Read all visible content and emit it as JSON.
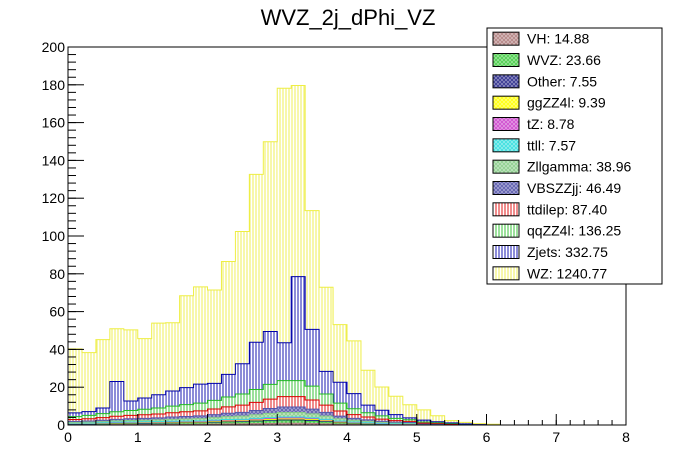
{
  "chart_data": {
    "type": "bar",
    "stacked": true,
    "title": "WVZ_2j_dPhi_VZ",
    "xlabel": "",
    "ylabel": "",
    "xlim": [
      0,
      8
    ],
    "ylim": [
      0,
      200
    ],
    "bin_width": 0.2,
    "x_tick_labels": [
      "0",
      "1",
      "2",
      "3",
      "4",
      "5",
      "6",
      "7",
      "8"
    ],
    "y_tick_labels": [
      "0",
      "20",
      "40",
      "60",
      "80",
      "100",
      "120",
      "140",
      "160",
      "180",
      "200"
    ],
    "legend_position": "top-right",
    "bin_edges_start": [
      0.0,
      0.2,
      0.4,
      0.6,
      0.8,
      1.0,
      1.2,
      1.4,
      1.6,
      1.8,
      2.0,
      2.2,
      2.4,
      2.6,
      2.8,
      3.0,
      3.2,
      3.4,
      3.6,
      3.8,
      4.0,
      4.2,
      4.4,
      4.6,
      4.8,
      5.0,
      5.2,
      5.4,
      5.6,
      5.8,
      6.0
    ],
    "series": [
      {
        "name": "VH: 14.88",
        "color": "#b07f7f",
        "pattern": "crosshatch",
        "values": [
          0.2,
          0.2,
          0.2,
          0.3,
          0.3,
          0.3,
          0.3,
          0.4,
          0.4,
          0.4,
          0.5,
          0.6,
          0.6,
          0.7,
          0.8,
          0.9,
          0.9,
          0.8,
          0.6,
          0.4,
          0.3,
          0.2,
          0.2,
          0.1,
          0.1,
          0.1,
          0.1,
          0,
          0,
          0,
          0
        ]
      },
      {
        "name": "WVZ: 23.66",
        "color": "#44cc44",
        "pattern": "crosshatch",
        "values": [
          0.3,
          0.3,
          0.4,
          0.5,
          0.5,
          0.5,
          0.6,
          0.6,
          0.7,
          0.7,
          0.8,
          0.9,
          1.0,
          1.1,
          1.3,
          1.4,
          1.4,
          1.2,
          1.0,
          0.7,
          0.5,
          0.4,
          0.3,
          0.2,
          0.2,
          0.1,
          0.1,
          0.1,
          0,
          0,
          0
        ]
      },
      {
        "name": "Other: 7.55",
        "color": "#2a2a8a",
        "pattern": "crosshatch",
        "values": [
          0.1,
          0.1,
          0.1,
          0.1,
          0.2,
          0.2,
          0.2,
          0.2,
          0.2,
          0.2,
          0.3,
          0.3,
          0.3,
          0.4,
          0.4,
          0.4,
          0.4,
          0.4,
          0.3,
          0.2,
          0.2,
          0.1,
          0.1,
          0.1,
          0.1,
          0,
          0,
          0,
          0,
          0,
          0
        ]
      },
      {
        "name": "ggZZ4l: 9.39",
        "color": "#ffff00",
        "pattern": "crosshatch",
        "values": [
          0.2,
          0.2,
          0.2,
          0.2,
          0.2,
          0.3,
          0.3,
          0.3,
          0.3,
          0.3,
          0.4,
          0.4,
          0.4,
          0.5,
          0.5,
          0.6,
          0.6,
          0.5,
          0.4,
          0.3,
          0.2,
          0.2,
          0.1,
          0.1,
          0.1,
          0,
          0,
          0,
          0,
          0,
          0
        ]
      },
      {
        "name": "tZ: 8.78",
        "color": "#cc44cc",
        "pattern": "crosshatch",
        "values": [
          0.1,
          0.1,
          0.2,
          0.2,
          0.2,
          0.2,
          0.2,
          0.3,
          0.3,
          0.3,
          0.3,
          0.4,
          0.4,
          0.4,
          0.5,
          0.5,
          0.5,
          0.5,
          0.4,
          0.3,
          0.2,
          0.2,
          0.1,
          0.1,
          0.1,
          0,
          0,
          0,
          0,
          0,
          0
        ]
      },
      {
        "name": "ttll: 7.57",
        "color": "#33dddd",
        "pattern": "crosshatch",
        "values": [
          0.1,
          0.1,
          0.1,
          0.2,
          0.2,
          0.2,
          0.2,
          0.2,
          0.2,
          0.3,
          0.3,
          0.3,
          0.3,
          0.4,
          0.4,
          0.4,
          0.4,
          0.4,
          0.3,
          0.2,
          0.2,
          0.1,
          0.1,
          0.1,
          0.1,
          0,
          0,
          0,
          0,
          0,
          0
        ]
      },
      {
        "name": "Zllgamma: 38.96",
        "color": "#88cc88",
        "pattern": "crosshatch",
        "values": [
          0.4,
          0.5,
          0.6,
          0.7,
          0.8,
          0.8,
          0.9,
          1.0,
          1.1,
          1.2,
          1.3,
          1.5,
          1.7,
          1.9,
          2.2,
          2.4,
          2.4,
          2.1,
          1.7,
          1.2,
          0.9,
          0.7,
          0.5,
          0.4,
          0.3,
          0.2,
          0.1,
          0.1,
          0.1,
          0,
          0
        ]
      },
      {
        "name": "VBSZZjj: 46.49",
        "color": "#5555aa",
        "pattern": "crosshatch",
        "values": [
          0.5,
          0.6,
          0.7,
          0.8,
          0.9,
          1.0,
          1.1,
          1.2,
          1.3,
          1.4,
          1.6,
          1.8,
          2.0,
          2.3,
          2.6,
          2.9,
          2.9,
          2.5,
          2.0,
          1.4,
          1.0,
          0.8,
          0.6,
          0.4,
          0.3,
          0.2,
          0.2,
          0.1,
          0.1,
          0,
          0
        ]
      },
      {
        "name": "ttdilep: 87.40",
        "color": "#dd0000",
        "pattern": "vlines",
        "values": [
          1.0,
          1.2,
          1.4,
          1.6,
          1.8,
          1.9,
          2.0,
          2.3,
          2.5,
          2.7,
          3.0,
          3.4,
          3.8,
          4.3,
          5.0,
          5.5,
          5.5,
          4.8,
          3.8,
          2.7,
          2.0,
          1.5,
          1.1,
          0.8,
          0.6,
          0.4,
          0.3,
          0.2,
          0.1,
          0.1,
          0
        ]
      },
      {
        "name": "qqZZ4l: 136.25",
        "color": "#22bb22",
        "pattern": "vlines",
        "values": [
          1.5,
          1.8,
          2.1,
          2.4,
          2.6,
          2.9,
          3.2,
          3.5,
          3.8,
          4.1,
          4.5,
          5.2,
          5.9,
          6.8,
          7.8,
          8.5,
          8.5,
          7.4,
          5.9,
          4.2,
          3.1,
          2.3,
          1.7,
          1.2,
          0.9,
          0.6,
          0.4,
          0.3,
          0.2,
          0.1,
          0.1
        ]
      },
      {
        "name": "Zjets: 332.75",
        "color": "#0000aa",
        "pattern": "vlines",
        "values": [
          2,
          2,
          3,
          16,
          5,
          6,
          7,
          8,
          9,
          10,
          9,
          12,
          16,
          25,
          28,
          20,
          55,
          30,
          12,
          11,
          8,
          4,
          3,
          2,
          1,
          1,
          0.5,
          0.3,
          0.1,
          0.1,
          0
        ]
      },
      {
        "name": "WZ: 1240.77",
        "color": "#eeee44",
        "pattern": "vlines",
        "values": [
          33.9,
          31.2,
          36.2,
          27.9,
          37.6,
          31.4,
          37.9,
          36.1,
          48.6,
          51.5,
          49.4,
          59.7,
          70.0,
          88.8,
          100.4,
          134.7,
          101.1,
          62.8,
          44.5,
          30.5,
          27.9,
          18.5,
          12.3,
          9.7,
          6.9,
          5.4,
          3.2,
          1.2,
          0.8,
          0.4,
          0.3
        ]
      }
    ]
  }
}
